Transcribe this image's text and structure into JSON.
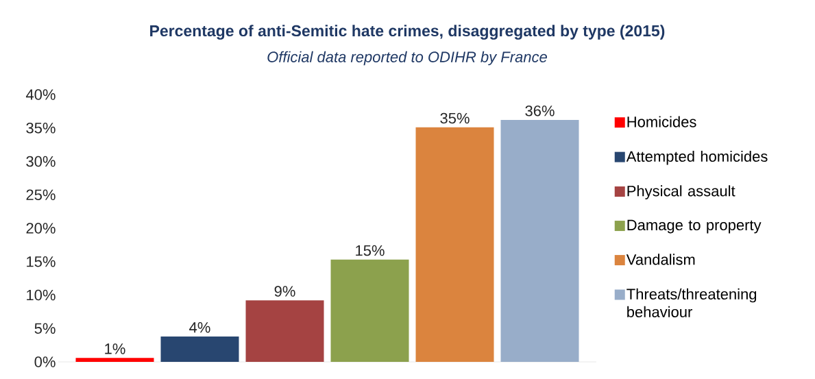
{
  "chart_data": {
    "type": "bar",
    "title": "Percentage of anti-Semitic hate crimes, disaggregated by type (2015)",
    "subtitle": "Official data reported to ODIHR by France",
    "categories": [
      null
    ],
    "series": [
      {
        "name": "Homicides",
        "color": "#ff0000",
        "values": [
          0.6
        ],
        "value_labels": [
          "1%"
        ]
      },
      {
        "name": "Attempted homicides",
        "color": "#284670",
        "values": [
          3.8
        ],
        "value_labels": [
          "4%"
        ]
      },
      {
        "name": "Physical assault",
        "color": "#a54342",
        "values": [
          9.2
        ],
        "value_labels": [
          "9%"
        ]
      },
      {
        "name": "Damage to property",
        "color": "#8ca14d",
        "values": [
          15.3
        ],
        "value_labels": [
          "15%"
        ]
      },
      {
        "name": "Vandalism",
        "color": "#db843e",
        "values": [
          35.1
        ],
        "value_labels": [
          "35%"
        ]
      },
      {
        "name": "Threats/threatening behaviour",
        "color": "#98adc9",
        "values": [
          36.2
        ],
        "value_labels": [
          "36%"
        ]
      }
    ],
    "ylim": [
      0,
      40
    ],
    "yticks": [
      {
        "value": 0,
        "label": "0%"
      },
      {
        "value": 5,
        "label": "5%"
      },
      {
        "value": 10,
        "label": "10%"
      },
      {
        "value": 15,
        "label": "15%"
      },
      {
        "value": 20,
        "label": "20%"
      },
      {
        "value": 25,
        "label": "25%"
      },
      {
        "value": 30,
        "label": "30%"
      },
      {
        "value": 35,
        "label": "35%"
      },
      {
        "value": 40,
        "label": "40%"
      }
    ],
    "legend": "right",
    "grid": false
  }
}
